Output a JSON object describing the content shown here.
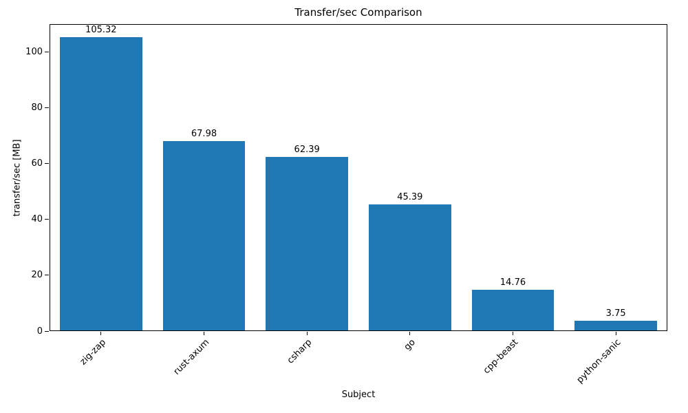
{
  "chart_data": {
    "type": "bar",
    "title": "Transfer/sec Comparison",
    "xlabel": "Subject",
    "ylabel": "transfer/sec [MB]",
    "categories": [
      "zig-zap",
      "rust-axum",
      "csharp",
      "go",
      "cpp-beast",
      "python-sanic"
    ],
    "values": [
      105.32,
      67.98,
      62.39,
      45.39,
      14.76,
      3.75
    ],
    "value_labels": [
      "105.32",
      "67.98",
      "62.39",
      "45.39",
      "14.76",
      "3.75"
    ],
    "ylim": [
      0,
      110
    ],
    "yticks": [
      0,
      20,
      40,
      60,
      80,
      100
    ],
    "bar_color": "#1f77b4",
    "grid": false,
    "legend": null,
    "x_tick_rotation_deg": 45
  }
}
